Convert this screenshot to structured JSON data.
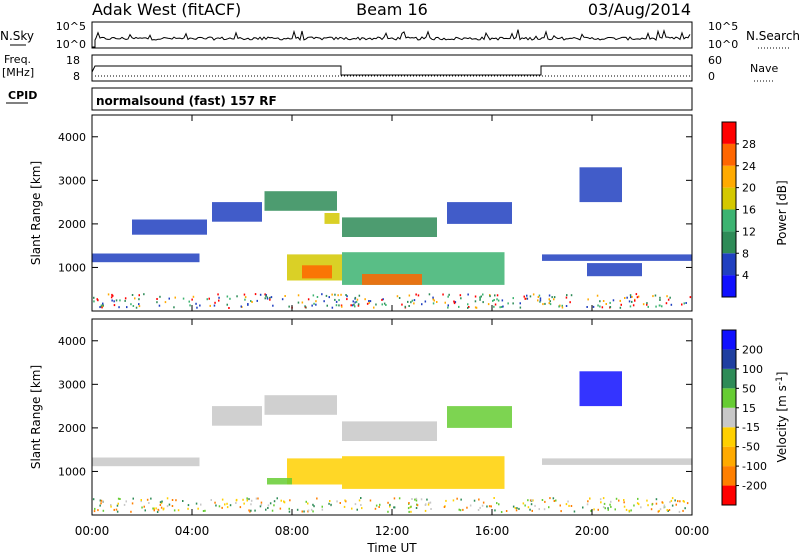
{
  "header": {
    "station": "Adak West (fitACF)",
    "beam": "Beam 16",
    "date": "03/Aug/2014"
  },
  "top_panels": {
    "nsky_label": "N.Sky",
    "nsearch_label": "N.Search",
    "nsky_ticks": [
      "10^5",
      "10^0"
    ],
    "nsearch_ticks": [
      "10^5",
      "10^0"
    ],
    "freq_label": "Freq.",
    "freq_unit": "[MHz]",
    "freq_ticks": [
      "18",
      "8"
    ],
    "nave_label": "Nave",
    "nave_ticks": [
      "60",
      "0"
    ],
    "cpid_label": "CPID",
    "cpid_text": "normalsound (fast) 157 RF"
  },
  "colors": {
    "power": [
      "#1010ff",
      "#2040c0",
      "#2e8b57",
      "#3cb371",
      "#d4c800",
      "#ffaa00",
      "#ff6600",
      "#ff0000"
    ],
    "velocity": [
      "#ff0000",
      "#ff7f00",
      "#ffaa00",
      "#ffd000",
      "#c8c8c8",
      "#66cc33",
      "#2e8b57",
      "#1f3fa0",
      "#1010ff"
    ]
  },
  "chart_data": [
    {
      "type": "heatmap",
      "title": "",
      "xlabel": "Time UT",
      "ylabel": "Slant Range [km]",
      "xlim": [
        "00:00",
        "24:00"
      ],
      "ylim": [
        0,
        4500
      ],
      "x_ticks": [
        "00:00",
        "04:00",
        "08:00",
        "12:00",
        "16:00",
        "20:00",
        "00:00"
      ],
      "y_ticks": [
        1000,
        2000,
        3000,
        4000
      ],
      "colorbar": {
        "label": "Power [dB]",
        "ticks": [
          4,
          8,
          12,
          16,
          20,
          24,
          28
        ],
        "range": [
          0,
          32
        ]
      },
      "regions": [
        {
          "t0": 0.0,
          "t1": 4.3,
          "r0": 1120,
          "r1": 1320,
          "value": 6
        },
        {
          "t0": 1.6,
          "t1": 4.6,
          "r0": 1750,
          "r1": 2100,
          "value": 5
        },
        {
          "t0": 4.8,
          "t1": 6.8,
          "r0": 2050,
          "r1": 2500,
          "value": 6
        },
        {
          "t0": 6.9,
          "t1": 9.8,
          "r0": 2300,
          "r1": 2750,
          "value": 8
        },
        {
          "t0": 9.3,
          "t1": 9.9,
          "r0": 2000,
          "r1": 2250,
          "value": 18
        },
        {
          "t0": 7.8,
          "t1": 10.0,
          "r0": 700,
          "r1": 1300,
          "value": 16
        },
        {
          "t0": 8.4,
          "t1": 9.6,
          "r0": 750,
          "r1": 1050,
          "value": 26
        },
        {
          "t0": 10.0,
          "t1": 16.5,
          "r0": 600,
          "r1": 1350,
          "value": 14
        },
        {
          "t0": 10.8,
          "t1": 13.2,
          "r0": 600,
          "r1": 850,
          "value": 25
        },
        {
          "t0": 10.0,
          "t1": 13.8,
          "r0": 1700,
          "r1": 2150,
          "value": 10
        },
        {
          "t0": 14.2,
          "t1": 16.8,
          "r0": 2000,
          "r1": 2500,
          "value": 6
        },
        {
          "t0": 18.0,
          "t1": 24.0,
          "r0": 1150,
          "r1": 1300,
          "value": 6
        },
        {
          "t0": 19.8,
          "t1": 22.0,
          "r0": 800,
          "r1": 1100,
          "value": 4
        },
        {
          "t0": 19.5,
          "t1": 21.2,
          "r0": 2500,
          "r1": 3300,
          "value": 6
        }
      ]
    },
    {
      "type": "heatmap",
      "title": "",
      "xlabel": "Time UT",
      "ylabel": "Slant Range [km]",
      "xlim": [
        "00:00",
        "24:00"
      ],
      "ylim": [
        0,
        4500
      ],
      "x_ticks": [
        "00:00",
        "04:00",
        "08:00",
        "12:00",
        "16:00",
        "20:00",
        "00:00"
      ],
      "y_ticks": [
        1000,
        2000,
        3000,
        4000
      ],
      "colorbar": {
        "label": "Velocity [m s^-1]",
        "ticks": [
          200,
          100,
          50,
          15,
          -15,
          -50,
          -100,
          -200
        ],
        "range": [
          -250,
          250
        ]
      },
      "regions": [
        {
          "t0": 0.0,
          "t1": 4.3,
          "r0": 1120,
          "r1": 1320,
          "value": 0
        },
        {
          "t0": 4.8,
          "t1": 6.8,
          "r0": 2050,
          "r1": 2500,
          "value": 0
        },
        {
          "t0": 6.9,
          "t1": 9.8,
          "r0": 2300,
          "r1": 2750,
          "value": 0
        },
        {
          "t0": 7.8,
          "t1": 10.0,
          "r0": 700,
          "r1": 1300,
          "value": -30
        },
        {
          "t0": 10.0,
          "t1": 16.5,
          "r0": 600,
          "r1": 1350,
          "value": -30
        },
        {
          "t0": 10.0,
          "t1": 13.8,
          "r0": 1700,
          "r1": 2150,
          "value": 0
        },
        {
          "t0": 14.2,
          "t1": 16.8,
          "r0": 2000,
          "r1": 2500,
          "value": 20
        },
        {
          "t0": 18.0,
          "t1": 24.0,
          "r0": 1150,
          "r1": 1300,
          "value": 0
        },
        {
          "t0": 19.5,
          "t1": 21.2,
          "r0": 2500,
          "r1": 3300,
          "value": 220
        },
        {
          "t0": 7.0,
          "t1": 8.0,
          "r0": 700,
          "r1": 850,
          "value": 30
        }
      ]
    }
  ],
  "footer": {
    "xlabel": "Time UT"
  }
}
